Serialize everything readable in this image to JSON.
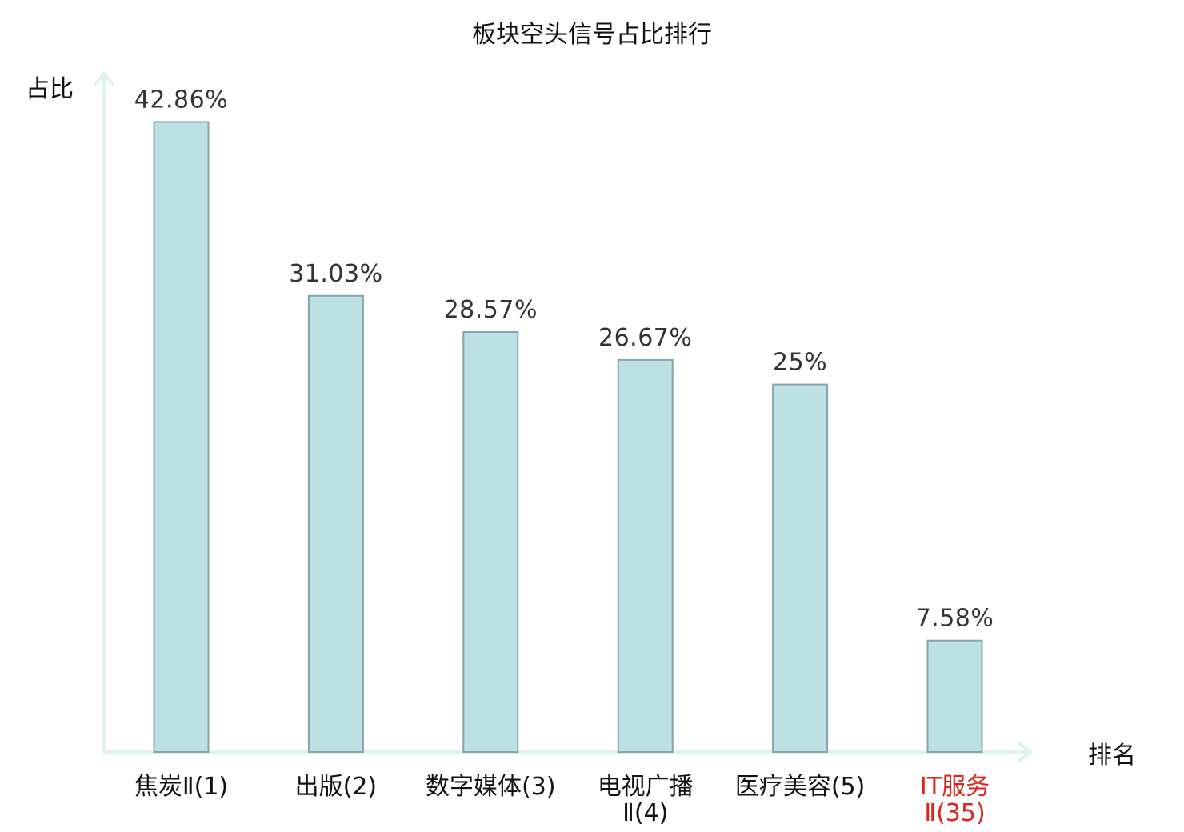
{
  "chart_data": {
    "type": "bar",
    "title": "板块空头信号占比排行",
    "ylabel": "占比",
    "xlabel": "排名",
    "categories": [
      [
        "焦炭Ⅱ(1)"
      ],
      [
        "出版(2)"
      ],
      [
        "数字媒体(3)"
      ],
      [
        "电视广播",
        "Ⅱ(4)"
      ],
      [
        "医疗美容(5)"
      ],
      [
        "IT服务",
        "Ⅱ(35)"
      ]
    ],
    "values": [
      42.86,
      31.03,
      28.57,
      26.67,
      25,
      7.58
    ],
    "value_labels": [
      "42.86%",
      "31.03%",
      "28.57%",
      "26.67%",
      "25%",
      "7.58%"
    ],
    "highlight_index": 5,
    "ylim": [
      0,
      46.2
    ],
    "grid": false,
    "colors": {
      "bar_fill": "#bce0e3",
      "bar_stroke": "#84a6a8",
      "axis": "#e0f2ef",
      "label_default": "#111111",
      "label_highlight": "#e0241b",
      "value_label": "#333333"
    }
  }
}
